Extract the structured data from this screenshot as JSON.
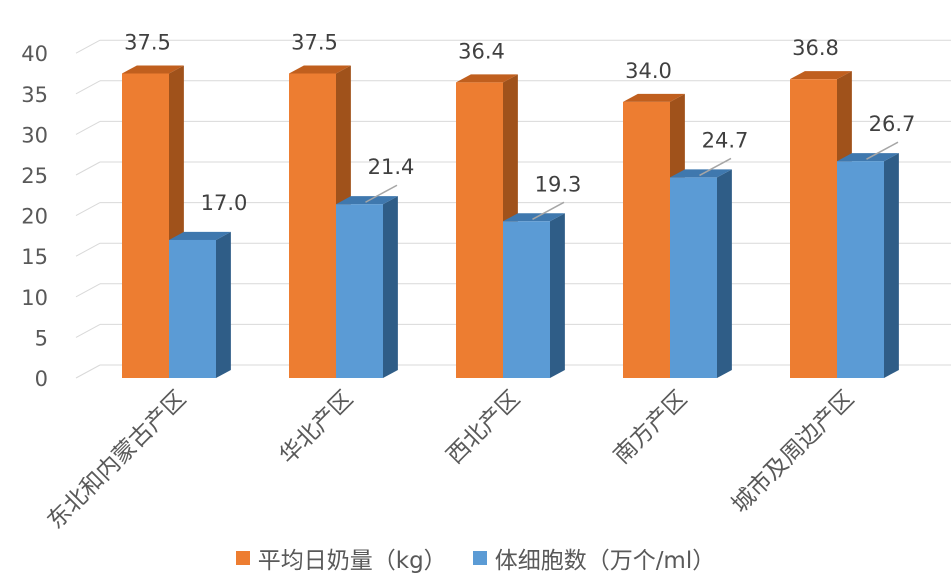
{
  "chart_data": {
    "type": "bar",
    "style": "3d-clustered-column",
    "categories": [
      "东北和内蒙古产区",
      "华北产区",
      "西北产区",
      "南方产区",
      "城市及周边产区"
    ],
    "series": [
      {
        "name": "平均日奶量（kg）",
        "values": [
          37.5,
          37.5,
          36.4,
          34.0,
          36.8
        ],
        "labels": [
          "37.5",
          "37.5",
          "36.4",
          "34.0",
          "36.8"
        ],
        "color": "#ED7D31",
        "side_color": "#A0521B",
        "top_color": "#C05F1E"
      },
      {
        "name": "体细胞数（万个/ml）",
        "values": [
          17.0,
          21.4,
          19.3,
          24.7,
          26.7
        ],
        "labels": [
          "17.0",
          "21.4",
          "19.3",
          "24.7",
          "26.7"
        ],
        "color": "#5B9BD5",
        "side_color": "#2F5D87",
        "top_color": "#3F78AE"
      }
    ],
    "y_ticks": [
      "0",
      "5",
      "10",
      "15",
      "20",
      "25",
      "30",
      "35",
      "40"
    ],
    "ylim": [
      0,
      40
    ],
    "grid": true,
    "legend_position": "bottom",
    "title": "",
    "xlabel": "",
    "ylabel": ""
  }
}
